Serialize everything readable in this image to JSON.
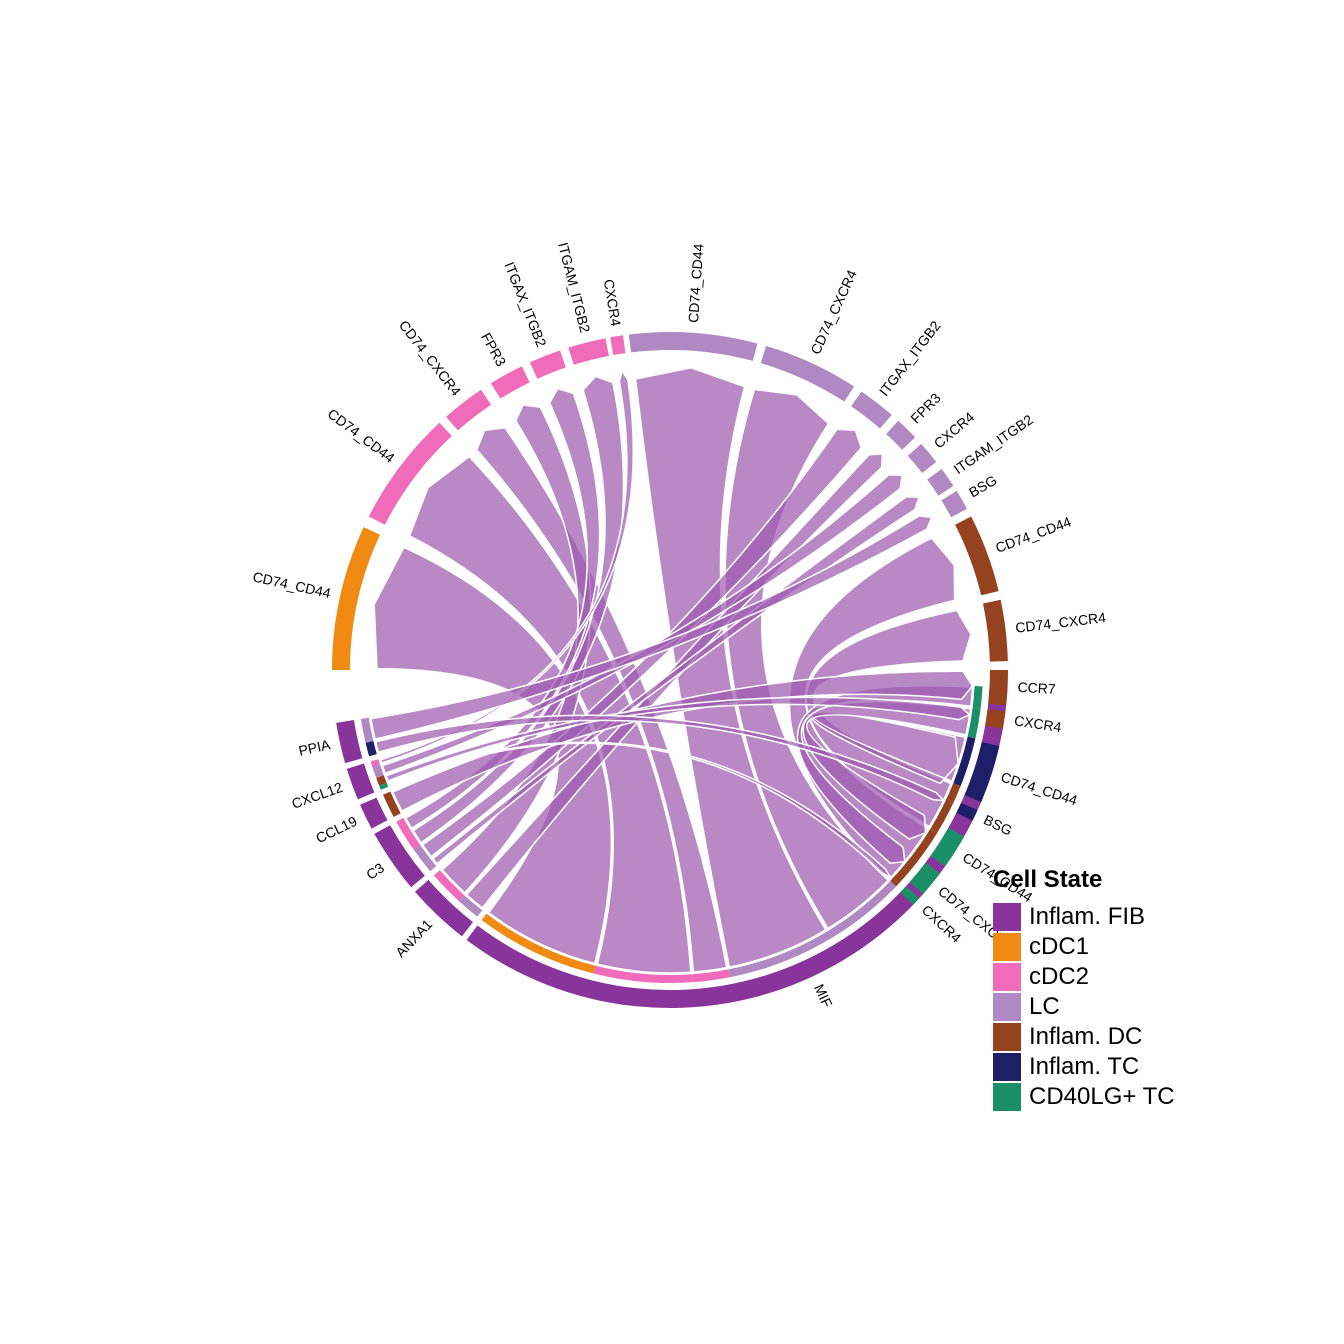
{
  "chart_data": {
    "type": "chord",
    "title": "",
    "legend": {
      "title": "Cell State",
      "position": "right-bottom",
      "items": [
        {
          "name": "Inflam. FIB",
          "color": "#88349A"
        },
        {
          "name": "cDC1",
          "color": "#F08A12"
        },
        {
          "name": "cDC2",
          "color": "#F06CBB"
        },
        {
          "name": "LC",
          "color": "#B189C2"
        },
        {
          "name": "Inflam. DC",
          "color": "#94431E"
        },
        {
          "name": "Inflam. TC",
          "color": "#1F1F68"
        },
        {
          "name": "CD40LG+ TC",
          "color": "#1B9068"
        }
      ]
    },
    "sectors": [
      {
        "label": "MIF",
        "cell_state": "Inflam. FIB",
        "role": "sender"
      },
      {
        "label": "ANXA1",
        "cell_state": "Inflam. FIB",
        "role": "sender"
      },
      {
        "label": "C3",
        "cell_state": "Inflam. FIB",
        "role": "sender"
      },
      {
        "label": "CCL19",
        "cell_state": "Inflam. FIB",
        "role": "sender"
      },
      {
        "label": "CXCL12",
        "cell_state": "Inflam. FIB",
        "role": "sender"
      },
      {
        "label": "PPIA",
        "cell_state": "Inflam. FIB",
        "role": "sender"
      },
      {
        "label": "CD74_CD44",
        "cell_state": "cDC1",
        "role": "receiver"
      },
      {
        "label": "CD74_CD44",
        "cell_state": "cDC2",
        "role": "receiver"
      },
      {
        "label": "CD74_CXCR4",
        "cell_state": "cDC2",
        "role": "receiver"
      },
      {
        "label": "FPR3",
        "cell_state": "cDC2",
        "role": "receiver"
      },
      {
        "label": "ITGAX_ITGB2",
        "cell_state": "cDC2",
        "role": "receiver"
      },
      {
        "label": "ITGAM_ITGB2",
        "cell_state": "cDC2",
        "role": "receiver"
      },
      {
        "label": "CXCR4",
        "cell_state": "cDC2",
        "role": "receiver"
      },
      {
        "label": "CD74_CD44",
        "cell_state": "LC",
        "role": "receiver"
      },
      {
        "label": "CD74_CXCR4",
        "cell_state": "LC",
        "role": "receiver"
      },
      {
        "label": "ITGAX_ITGB2",
        "cell_state": "LC",
        "role": "receiver"
      },
      {
        "label": "FPR3",
        "cell_state": "LC",
        "role": "receiver"
      },
      {
        "label": "CXCR4",
        "cell_state": "LC",
        "role": "receiver"
      },
      {
        "label": "ITGAM_ITGB2",
        "cell_state": "LC",
        "role": "receiver"
      },
      {
        "label": "BSG",
        "cell_state": "LC",
        "role": "receiver"
      },
      {
        "label": "CD74_CD44",
        "cell_state": "Inflam. DC",
        "role": "receiver"
      },
      {
        "label": "CD74_CXCR4",
        "cell_state": "Inflam. DC",
        "role": "receiver"
      },
      {
        "label": "CCR7",
        "cell_state": "Inflam. DC",
        "role": "receiver"
      },
      {
        "label": "CXCR4",
        "cell_state": "Inflam. DC",
        "role": "receiver"
      },
      {
        "label": "CD74_CD44",
        "cell_state": "Inflam. TC",
        "role": "receiver"
      },
      {
        "label": "BSG",
        "cell_state": "Inflam. TC",
        "role": "receiver"
      },
      {
        "label": "CD74_CD44",
        "cell_state": "CD40LG+ TC",
        "role": "receiver"
      },
      {
        "label": "CD74_CXCR4",
        "cell_state": "CD40LG+ TC",
        "role": "receiver"
      },
      {
        "label": "CXCR4",
        "cell_state": "CD40LG+ TC",
        "role": "receiver"
      }
    ],
    "links": [
      {
        "from": "MIF",
        "to": "CD74_CD44 (cDC1)"
      },
      {
        "from": "MIF",
        "to": "CD74_CD44 (cDC2)"
      },
      {
        "from": "MIF",
        "to": "CD74_CXCR4 (cDC2)"
      },
      {
        "from": "MIF",
        "to": "CD74_CD44 (LC)"
      },
      {
        "from": "MIF",
        "to": "CD74_CXCR4 (LC)"
      },
      {
        "from": "MIF",
        "to": "CD74_CD44 (Inflam. DC)"
      },
      {
        "from": "MIF",
        "to": "CD74_CXCR4 (Inflam. DC)"
      },
      {
        "from": "MIF",
        "to": "CD74_CD44 (Inflam. TC)"
      },
      {
        "from": "MIF",
        "to": "CD74_CD44 (CD40LG+ TC)"
      },
      {
        "from": "MIF",
        "to": "CD74_CXCR4 (CD40LG+ TC)"
      },
      {
        "from": "ANXA1",
        "to": "FPR3 (cDC2)"
      },
      {
        "from": "ANXA1",
        "to": "FPR3 (LC)"
      },
      {
        "from": "C3",
        "to": "ITGAX_ITGB2 (cDC2)"
      },
      {
        "from": "C3",
        "to": "ITGAM_ITGB2 (cDC2)"
      },
      {
        "from": "C3",
        "to": "ITGAX_ITGB2 (LC)"
      },
      {
        "from": "C3",
        "to": "ITGAM_ITGB2 (LC)"
      },
      {
        "from": "CCL19",
        "to": "CCR7 (Inflam. DC)"
      },
      {
        "from": "CXCL12",
        "to": "CXCR4 (cDC2)"
      },
      {
        "from": "CXCL12",
        "to": "CXCR4 (LC)"
      },
      {
        "from": "CXCL12",
        "to": "CXCR4 (Inflam. DC)"
      },
      {
        "from": "CXCL12",
        "to": "CXCR4 (CD40LG+ TC)"
      },
      {
        "from": "PPIA",
        "to": "BSG (LC)"
      },
      {
        "from": "PPIA",
        "to": "BSG (Inflam. TC)"
      }
    ]
  }
}
